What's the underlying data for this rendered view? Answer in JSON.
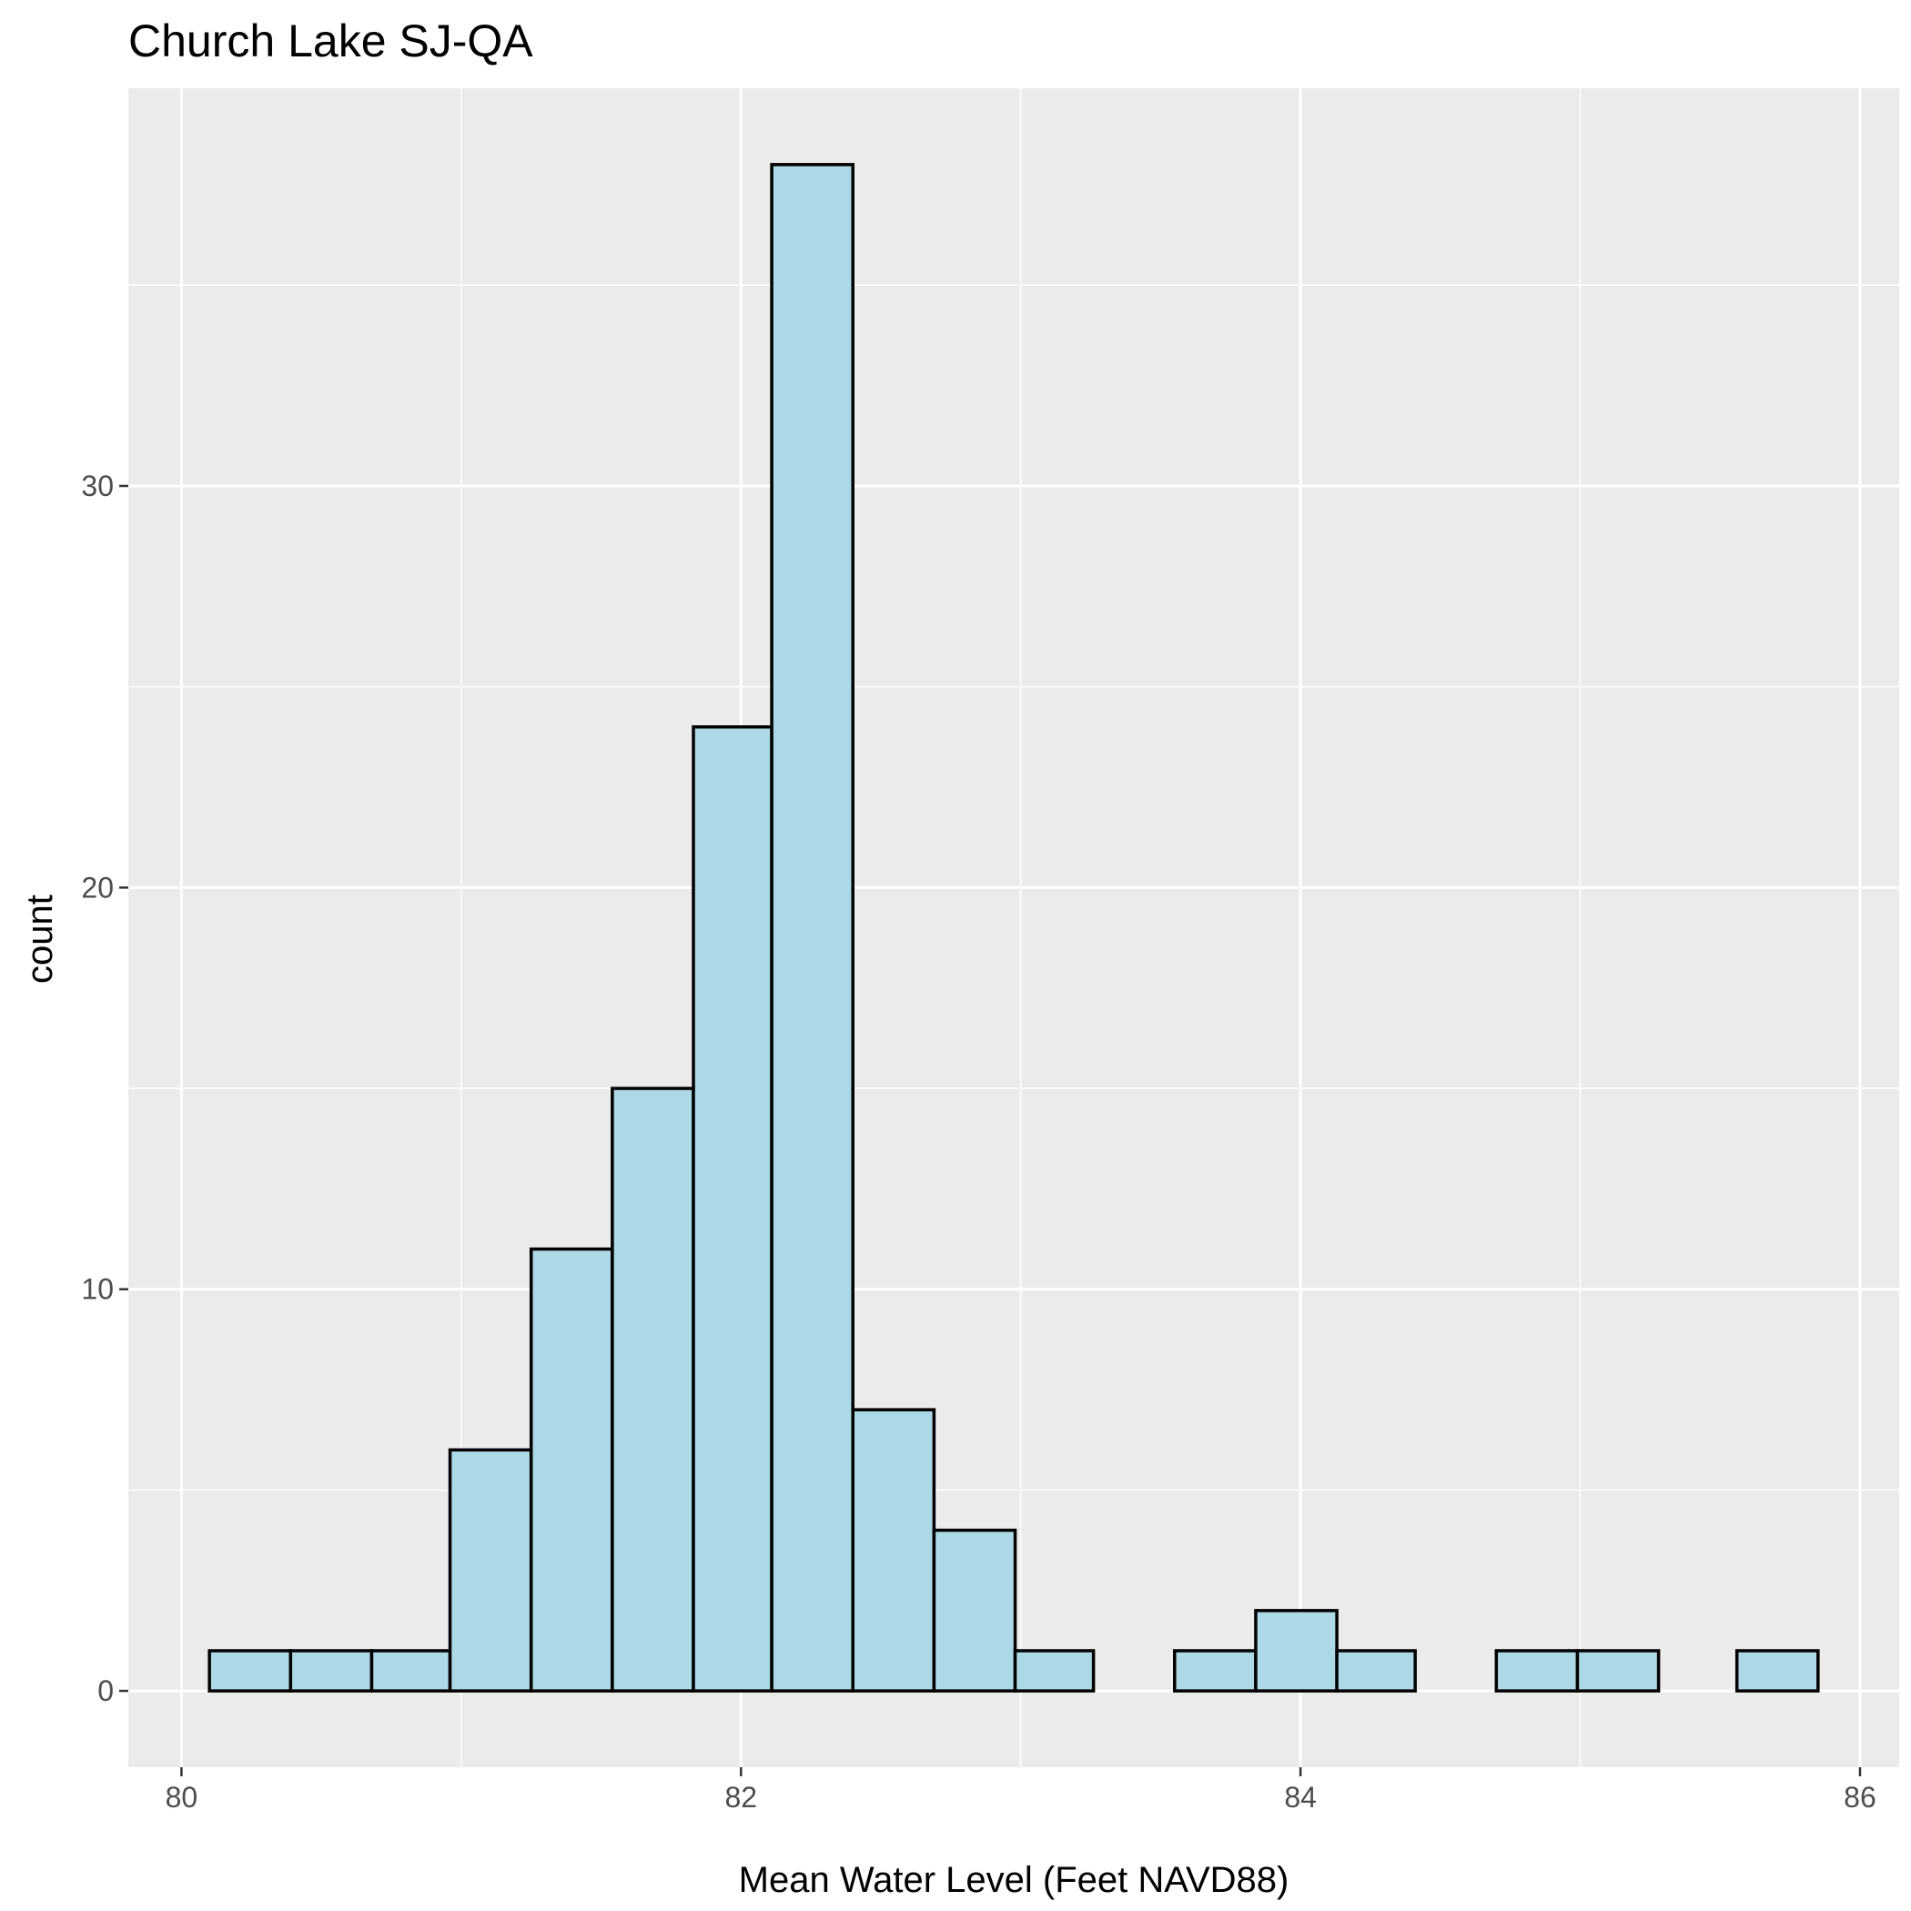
{
  "chart_data": {
    "type": "bar",
    "title": "Church Lake SJ-QA",
    "xlabel": "Mean Water Level (Feet NAVD88)",
    "ylabel": "count",
    "bin_width": 0.2875,
    "bins": [
      {
        "start": 80.1,
        "end": 80.39,
        "count": 1
      },
      {
        "start": 80.39,
        "end": 80.68,
        "count": 1
      },
      {
        "start": 80.68,
        "end": 80.96,
        "count": 1
      },
      {
        "start": 80.96,
        "end": 81.25,
        "count": 6
      },
      {
        "start": 81.25,
        "end": 81.54,
        "count": 11
      },
      {
        "start": 81.54,
        "end": 81.83,
        "count": 15
      },
      {
        "start": 81.83,
        "end": 82.11,
        "count": 24
      },
      {
        "start": 82.11,
        "end": 82.4,
        "count": 38
      },
      {
        "start": 82.4,
        "end": 82.69,
        "count": 7
      },
      {
        "start": 82.69,
        "end": 82.98,
        "count": 4
      },
      {
        "start": 82.98,
        "end": 83.26,
        "count": 1
      },
      {
        "start": 83.26,
        "end": 83.55,
        "count": 0
      },
      {
        "start": 83.55,
        "end": 83.84,
        "count": 1
      },
      {
        "start": 83.84,
        "end": 84.13,
        "count": 2
      },
      {
        "start": 84.13,
        "end": 84.41,
        "count": 1
      },
      {
        "start": 84.41,
        "end": 84.7,
        "count": 0
      },
      {
        "start": 84.7,
        "end": 84.99,
        "count": 1
      },
      {
        "start": 84.99,
        "end": 85.28,
        "count": 1
      },
      {
        "start": 85.28,
        "end": 85.56,
        "count": 0
      },
      {
        "start": 85.56,
        "end": 85.85,
        "count": 1
      }
    ],
    "xlim": [
      79.81,
      86.14
    ],
    "ylim": [
      -1.9,
      39.9
    ],
    "x_ticks": [
      80,
      82,
      84,
      86
    ],
    "x_tick_labels": [
      "80",
      "82",
      "84",
      "86"
    ],
    "y_ticks": [
      0,
      10,
      20,
      30
    ],
    "y_tick_labels": [
      "0",
      "10",
      "20",
      "30"
    ],
    "grid": true,
    "legend": "none"
  },
  "colors": {
    "bar_fill": "#add8e6",
    "bar_outline": "#000000",
    "panel_background": "#ebebeb",
    "grid": "#ffffff"
  }
}
